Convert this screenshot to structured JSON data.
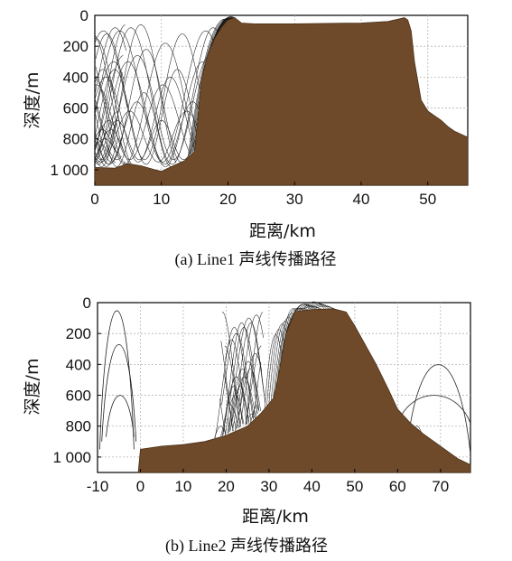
{
  "chart_data": [
    {
      "type": "line",
      "caption": "(a) Line1 声线传播路径",
      "xlabel": "距离/km",
      "ylabel": "深度/m",
      "xlim": [
        0,
        56
      ],
      "ylim": [
        1100,
        0
      ],
      "y_inverted": true,
      "xticks": [
        0,
        10,
        20,
        30,
        40,
        50
      ],
      "yticks": [
        0,
        200,
        400,
        600,
        800,
        1000
      ],
      "ytick_labels": [
        "0",
        "200",
        "400",
        "600",
        "800",
        "1 000"
      ],
      "grid": true,
      "series": [
        {
          "kind": "seabed",
          "color": "#6e4a2b",
          "x": [
            0,
            3,
            5,
            7,
            9,
            10,
            12,
            13.5,
            15,
            15.5,
            16,
            17,
            18,
            19,
            20,
            21,
            22,
            24,
            30,
            35,
            40,
            44,
            45.5,
            46.5,
            47,
            47.5,
            48,
            49,
            50,
            51,
            52,
            53,
            54,
            55,
            56
          ],
          "y": [
            985,
            990,
            960,
            975,
            1000,
            1010,
            970,
            940,
            880,
            650,
            420,
            250,
            150,
            80,
            30,
            15,
            50,
            55,
            55,
            52,
            50,
            40,
            25,
            15,
            30,
            100,
            300,
            550,
            620,
            650,
            680,
            720,
            750,
            770,
            790
          ]
        },
        {
          "kind": "rays",
          "color": "#222222",
          "source_x": 1,
          "turning_depths": [
            60,
            80,
            100,
            120,
            150,
            180,
            220,
            260,
            300,
            350,
            400,
            450,
            500,
            560,
            620,
            680,
            740,
            800
          ]
        }
      ]
    },
    {
      "type": "line",
      "caption": "(b) Line2 声线传播路径",
      "xlabel": "距离/km",
      "ylabel": "深度/m",
      "xlim": [
        -10,
        77
      ],
      "ylim": [
        1100,
        0
      ],
      "y_inverted": true,
      "xticks": [
        -10,
        0,
        10,
        20,
        30,
        40,
        50,
        60,
        70
      ],
      "yticks": [
        0,
        200,
        400,
        600,
        800,
        1000
      ],
      "ytick_labels": [
        "0",
        "200",
        "400",
        "600",
        "800",
        "1 000"
      ],
      "grid": true,
      "series": [
        {
          "kind": "seabed",
          "color": "#6e4a2b",
          "x": [
            -0.5,
            0,
            5,
            10,
            15,
            20,
            25,
            28,
            31,
            32,
            34,
            36,
            38,
            40,
            45,
            48,
            50,
            52,
            55,
            58,
            60,
            63,
            66,
            70,
            74,
            77
          ],
          "y": [
            1100,
            950,
            930,
            920,
            900,
            860,
            800,
            720,
            620,
            500,
            200,
            60,
            50,
            45,
            40,
            60,
            150,
            250,
            400,
            570,
            690,
            780,
            850,
            930,
            1010,
            1050
          ],
          "x_end_note": "seabed starts at about x=0"
        },
        {
          "kind": "rays",
          "color": "#222222",
          "source_x": 25,
          "turning_depths": [
            60,
            80,
            100,
            130,
            160,
            200,
            240,
            280,
            330,
            380,
            430,
            480,
            540,
            600,
            660,
            720,
            800
          ],
          "extra_left": [
            {
              "x0": -9.5,
              "x1": -1.5,
              "top": 50,
              "bottom": 950
            },
            {
              "x0": -9.0,
              "x1": -1.0,
              "top": 270,
              "bottom": 900
            },
            {
              "x0": -8.0,
              "x1": -1.5,
              "top": 600,
              "bottom": 870
            }
          ],
          "extra_right": [
            {
              "x0": 62,
              "x1": 77,
              "top": 400,
              "bottom": 980
            },
            {
              "x0": 60,
              "x1": 77,
              "top": 600,
              "bottom": 780
            }
          ]
        }
      ]
    }
  ]
}
